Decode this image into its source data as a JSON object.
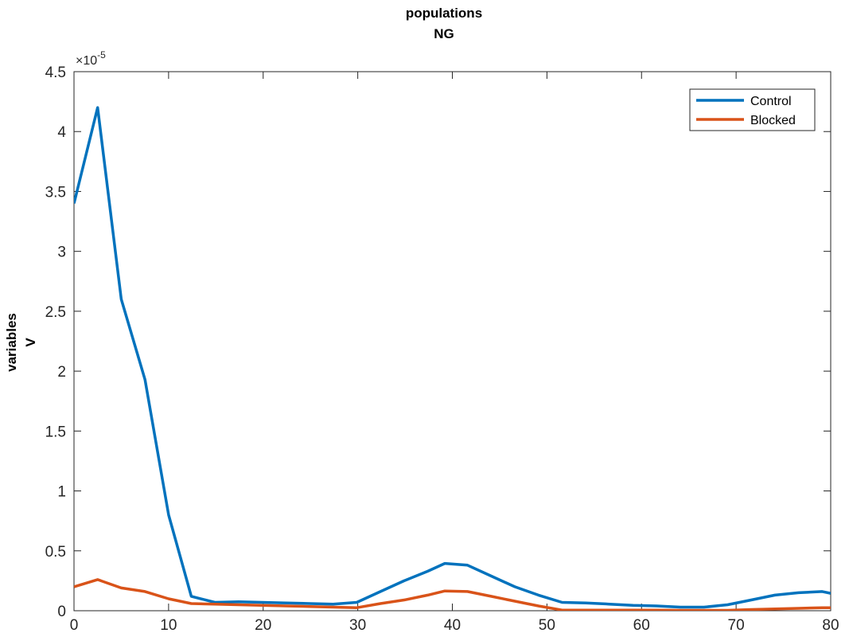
{
  "chart_data": {
    "type": "line",
    "title": [
      "populations",
      "NG"
    ],
    "xlabel": "",
    "ylabel": [
      "variables",
      "V"
    ],
    "exponent_label": "×10",
    "exponent_power": "-5",
    "xlim": [
      0,
      80
    ],
    "ylim": [
      0,
      4.5
    ],
    "xticks": [
      0,
      10,
      20,
      30,
      40,
      50,
      60,
      70,
      80
    ],
    "yticks": [
      0,
      0.5,
      1,
      1.5,
      2,
      2.5,
      3,
      3.5,
      4,
      4.5
    ],
    "grid": false,
    "legend_position": "top-right",
    "x": [
      0,
      2.5,
      5,
      7.5,
      10,
      12.4,
      14.9,
      17.4,
      19.9,
      22.4,
      24.9,
      27.4,
      29.9,
      32.4,
      34.9,
      37.4,
      39.2,
      41.6,
      44.1,
      46.6,
      49.1,
      51.6,
      54.1,
      56.6,
      59.1,
      61.6,
      64.1,
      66.6,
      69.1,
      71.6,
      74.1,
      76.6,
      79.1,
      80
    ],
    "series": [
      {
        "name": "Control",
        "color": "#0072BD",
        "values": [
          3.4,
          4.2,
          2.6,
          1.93,
          0.8,
          0.12,
          0.07,
          0.075,
          0.07,
          0.065,
          0.06,
          0.055,
          0.07,
          0.16,
          0.25,
          0.33,
          0.395,
          0.38,
          0.29,
          0.2,
          0.13,
          0.07,
          0.065,
          0.055,
          0.045,
          0.04,
          0.03,
          0.03,
          0.05,
          0.09,
          0.13,
          0.15,
          0.16,
          0.145
        ]
      },
      {
        "name": "Blocked",
        "color": "#D95319",
        "values": [
          0.2,
          0.26,
          0.19,
          0.16,
          0.1,
          0.06,
          0.055,
          0.05,
          0.045,
          0.04,
          0.035,
          0.03,
          0.025,
          0.06,
          0.09,
          0.13,
          0.165,
          0.16,
          0.12,
          0.08,
          0.04,
          0.005,
          0.005,
          0.005,
          0.005,
          0.005,
          0.003,
          0.003,
          0.003,
          0.01,
          0.015,
          0.02,
          0.025,
          0.025
        ]
      }
    ]
  }
}
